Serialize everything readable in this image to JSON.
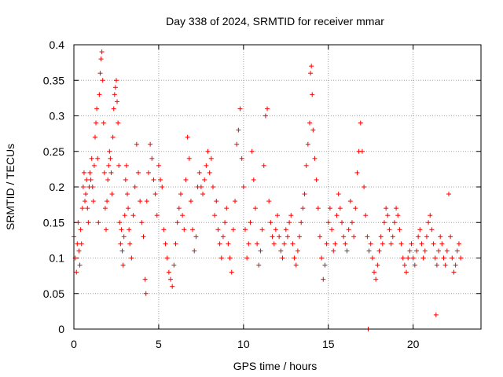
{
  "chart_data": {
    "type": "scatter",
    "title": "Day 338 of 2024, SRMTID for receiver mmar",
    "xlabel": "GPS time / hours",
    "ylabel": "SRMTID / TECUs",
    "xlim": [
      0,
      24
    ],
    "ylim": [
      0,
      0.4
    ],
    "x_ticks": [
      0,
      5,
      10,
      15,
      20
    ],
    "y_ticks": [
      0,
      0.05,
      0.1,
      0.15,
      0.2,
      0.25,
      0.3,
      0.35,
      0.4
    ],
    "x_tick_labels": [
      "0",
      "5",
      "10",
      "15",
      "20"
    ],
    "y_tick_labels": [
      "0",
      "0.05",
      "0.1",
      "0.15",
      "0.2",
      "0.25",
      "0.3",
      "0.35",
      "0.4"
    ],
    "grid": true,
    "marker": "+",
    "color": "#ff0000",
    "series": [
      {
        "points": [
          [
            0.0,
            0.13
          ],
          [
            0.08,
            0.1
          ],
          [
            0.15,
            0.08
          ],
          [
            0.2,
            0.12
          ],
          [
            0.25,
            0.15
          ],
          [
            0.3,
            0.11
          ],
          [
            0.35,
            0.09
          ],
          [
            0.4,
            0.14
          ],
          [
            0.45,
            0.12
          ],
          [
            0.5,
            0.17
          ],
          [
            0.55,
            0.2
          ],
          [
            0.6,
            0.22
          ],
          [
            0.65,
            0.18
          ],
          [
            0.7,
            0.19
          ],
          [
            0.75,
            0.21
          ],
          [
            0.8,
            0.17
          ],
          [
            0.85,
            0.15
          ],
          [
            0.9,
            0.2
          ],
          [
            0.95,
            0.22
          ],
          [
            1.0,
            0.21
          ],
          [
            1.05,
            0.24
          ],
          [
            1.1,
            0.2
          ],
          [
            1.15,
            0.18
          ],
          [
            1.2,
            0.23
          ],
          [
            1.25,
            0.27
          ],
          [
            1.3,
            0.29
          ],
          [
            1.35,
            0.31
          ],
          [
            1.4,
            0.24
          ],
          [
            1.45,
            0.15
          ],
          [
            1.5,
            0.33
          ],
          [
            1.55,
            0.36
          ],
          [
            1.6,
            0.38
          ],
          [
            1.65,
            0.39
          ],
          [
            1.7,
            0.35
          ],
          [
            1.75,
            0.29
          ],
          [
            1.8,
            0.22
          ],
          [
            1.85,
            0.17
          ],
          [
            1.9,
            0.14
          ],
          [
            1.95,
            0.18
          ],
          [
            2.0,
            0.21
          ],
          [
            2.05,
            0.23
          ],
          [
            2.1,
            0.25
          ],
          [
            2.15,
            0.24
          ],
          [
            2.2,
            0.22
          ],
          [
            2.25,
            0.19
          ],
          [
            2.3,
            0.27
          ],
          [
            2.35,
            0.31
          ],
          [
            2.4,
            0.33
          ],
          [
            2.45,
            0.34
          ],
          [
            2.5,
            0.35
          ],
          [
            2.55,
            0.32
          ],
          [
            2.6,
            0.29
          ],
          [
            2.65,
            0.23
          ],
          [
            2.7,
            0.15
          ],
          [
            2.75,
            0.12
          ],
          [
            2.8,
            0.14
          ],
          [
            2.85,
            0.11
          ],
          [
            2.9,
            0.09
          ],
          [
            2.95,
            0.13
          ],
          [
            3.0,
            0.16
          ],
          [
            3.05,
            0.21
          ],
          [
            3.1,
            0.23
          ],
          [
            3.15,
            0.19
          ],
          [
            3.2,
            0.17
          ],
          [
            3.25,
            0.14
          ],
          [
            3.3,
            0.12
          ],
          [
            3.4,
            0.1
          ],
          [
            3.5,
            0.16
          ],
          [
            3.6,
            0.2
          ],
          [
            3.7,
            0.26
          ],
          [
            3.8,
            0.22
          ],
          [
            3.9,
            0.18
          ],
          [
            4.0,
            0.15
          ],
          [
            4.1,
            0.13
          ],
          [
            4.2,
            0.07
          ],
          [
            4.25,
            0.05
          ],
          [
            4.3,
            0.18
          ],
          [
            4.4,
            0.22
          ],
          [
            4.5,
            0.26
          ],
          [
            4.6,
            0.24
          ],
          [
            4.7,
            0.21
          ],
          [
            4.8,
            0.19
          ],
          [
            4.9,
            0.16
          ],
          [
            5.0,
            0.23
          ],
          [
            5.1,
            0.21
          ],
          [
            5.2,
            0.2
          ],
          [
            5.3,
            0.14
          ],
          [
            5.4,
            0.12
          ],
          [
            5.5,
            0.1
          ],
          [
            5.6,
            0.08
          ],
          [
            5.7,
            0.07
          ],
          [
            5.8,
            0.06
          ],
          [
            5.9,
            0.09
          ],
          [
            6.0,
            0.12
          ],
          [
            6.1,
            0.15
          ],
          [
            6.2,
            0.17
          ],
          [
            6.3,
            0.19
          ],
          [
            6.4,
            0.16
          ],
          [
            6.5,
            0.14
          ],
          [
            6.6,
            0.21
          ],
          [
            6.7,
            0.27
          ],
          [
            6.8,
            0.24
          ],
          [
            6.9,
            0.18
          ],
          [
            7.0,
            0.14
          ],
          [
            7.1,
            0.11
          ],
          [
            7.2,
            0.13
          ],
          [
            7.3,
            0.2
          ],
          [
            7.4,
            0.22
          ],
          [
            7.5,
            0.2
          ],
          [
            7.6,
            0.19
          ],
          [
            7.7,
            0.21
          ],
          [
            7.8,
            0.23
          ],
          [
            7.9,
            0.25
          ],
          [
            8.0,
            0.22
          ],
          [
            8.1,
            0.24
          ],
          [
            8.2,
            0.2
          ],
          [
            8.3,
            0.16
          ],
          [
            8.4,
            0.18
          ],
          [
            8.5,
            0.14
          ],
          [
            8.6,
            0.12
          ],
          [
            8.7,
            0.1
          ],
          [
            8.8,
            0.13
          ],
          [
            8.9,
            0.15
          ],
          [
            9.0,
            0.17
          ],
          [
            9.1,
            0.12
          ],
          [
            9.2,
            0.1
          ],
          [
            9.3,
            0.08
          ],
          [
            9.4,
            0.14
          ],
          [
            9.5,
            0.18
          ],
          [
            9.6,
            0.26
          ],
          [
            9.7,
            0.28
          ],
          [
            9.8,
            0.31
          ],
          [
            9.9,
            0.24
          ],
          [
            10.0,
            0.2
          ],
          [
            10.1,
            0.14
          ],
          [
            10.2,
            0.1
          ],
          [
            10.3,
            0.12
          ],
          [
            10.4,
            0.15
          ],
          [
            10.5,
            0.25
          ],
          [
            10.6,
            0.21
          ],
          [
            10.7,
            0.17
          ],
          [
            10.8,
            0.12
          ],
          [
            10.9,
            0.09
          ],
          [
            11.0,
            0.11
          ],
          [
            11.1,
            0.14
          ],
          [
            11.2,
            0.23
          ],
          [
            11.3,
            0.3
          ],
          [
            11.4,
            0.31
          ],
          [
            11.5,
            0.18
          ],
          [
            11.6,
            0.15
          ],
          [
            11.7,
            0.13
          ],
          [
            11.8,
            0.12
          ],
          [
            11.9,
            0.14
          ],
          [
            12.0,
            0.16
          ],
          [
            12.1,
            0.13
          ],
          [
            12.2,
            0.11
          ],
          [
            12.3,
            0.1
          ],
          [
            12.4,
            0.12
          ],
          [
            12.5,
            0.14
          ],
          [
            12.6,
            0.13
          ],
          [
            12.7,
            0.15
          ],
          [
            12.8,
            0.16
          ],
          [
            12.9,
            0.12
          ],
          [
            13.0,
            0.1
          ],
          [
            13.1,
            0.09
          ],
          [
            13.2,
            0.11
          ],
          [
            13.3,
            0.13
          ],
          [
            13.4,
            0.15
          ],
          [
            13.5,
            0.17
          ],
          [
            13.6,
            0.19
          ],
          [
            13.7,
            0.23
          ],
          [
            13.8,
            0.26
          ],
          [
            13.9,
            0.29
          ],
          [
            13.95,
            0.36
          ],
          [
            14.0,
            0.37
          ],
          [
            14.05,
            0.33
          ],
          [
            14.1,
            0.28
          ],
          [
            14.2,
            0.24
          ],
          [
            14.3,
            0.21
          ],
          [
            14.4,
            0.17
          ],
          [
            14.5,
            0.13
          ],
          [
            14.6,
            0.1
          ],
          [
            14.7,
            0.07
          ],
          [
            14.8,
            0.09
          ],
          [
            14.9,
            0.12
          ],
          [
            15.0,
            0.15
          ],
          [
            15.1,
            0.17
          ],
          [
            15.2,
            0.14
          ],
          [
            15.3,
            0.11
          ],
          [
            15.4,
            0.12
          ],
          [
            15.5,
            0.16
          ],
          [
            15.6,
            0.19
          ],
          [
            15.7,
            0.17
          ],
          [
            15.8,
            0.15
          ],
          [
            15.9,
            0.13
          ],
          [
            16.0,
            0.12
          ],
          [
            16.1,
            0.11
          ],
          [
            16.2,
            0.14
          ],
          [
            16.3,
            0.18
          ],
          [
            16.4,
            0.15
          ],
          [
            16.5,
            0.13
          ],
          [
            16.6,
            0.17
          ],
          [
            16.7,
            0.22
          ],
          [
            16.8,
            0.25
          ],
          [
            16.9,
            0.29
          ],
          [
            17.0,
            0.25
          ],
          [
            17.1,
            0.2
          ],
          [
            17.2,
            0.16
          ],
          [
            17.3,
            0.13
          ],
          [
            17.35,
            0.0
          ],
          [
            17.4,
            0.11
          ],
          [
            17.5,
            0.12
          ],
          [
            17.6,
            0.1
          ],
          [
            17.7,
            0.08
          ],
          [
            17.8,
            0.07
          ],
          [
            17.9,
            0.09
          ],
          [
            18.0,
            0.11
          ],
          [
            18.1,
            0.13
          ],
          [
            18.2,
            0.12
          ],
          [
            18.3,
            0.15
          ],
          [
            18.4,
            0.17
          ],
          [
            18.5,
            0.16
          ],
          [
            18.6,
            0.14
          ],
          [
            18.7,
            0.12
          ],
          [
            18.8,
            0.13
          ],
          [
            18.9,
            0.15
          ],
          [
            19.0,
            0.17
          ],
          [
            19.1,
            0.16
          ],
          [
            19.2,
            0.14
          ],
          [
            19.3,
            0.12
          ],
          [
            19.4,
            0.1
          ],
          [
            19.5,
            0.09
          ],
          [
            19.6,
            0.08
          ],
          [
            19.7,
            0.1
          ],
          [
            19.8,
            0.11
          ],
          [
            19.9,
            0.12
          ],
          [
            20.0,
            0.1
          ],
          [
            20.1,
            0.09
          ],
          [
            20.2,
            0.11
          ],
          [
            20.3,
            0.13
          ],
          [
            20.4,
            0.14
          ],
          [
            20.5,
            0.12
          ],
          [
            20.6,
            0.1
          ],
          [
            20.7,
            0.11
          ],
          [
            20.8,
            0.13
          ],
          [
            20.9,
            0.15
          ],
          [
            21.0,
            0.16
          ],
          [
            21.1,
            0.14
          ],
          [
            21.2,
            0.12
          ],
          [
            21.3,
            0.1
          ],
          [
            21.35,
            0.02
          ],
          [
            21.4,
            0.09
          ],
          [
            21.5,
            0.11
          ],
          [
            21.6,
            0.13
          ],
          [
            21.7,
            0.12
          ],
          [
            21.8,
            0.1
          ],
          [
            21.9,
            0.09
          ],
          [
            22.0,
            0.11
          ],
          [
            22.1,
            0.19
          ],
          [
            22.2,
            0.13
          ],
          [
            22.3,
            0.1
          ],
          [
            22.4,
            0.08
          ],
          [
            22.5,
            0.09
          ],
          [
            22.6,
            0.11
          ],
          [
            22.7,
            0.12
          ],
          [
            22.8,
            0.1
          ]
        ]
      }
    ]
  }
}
